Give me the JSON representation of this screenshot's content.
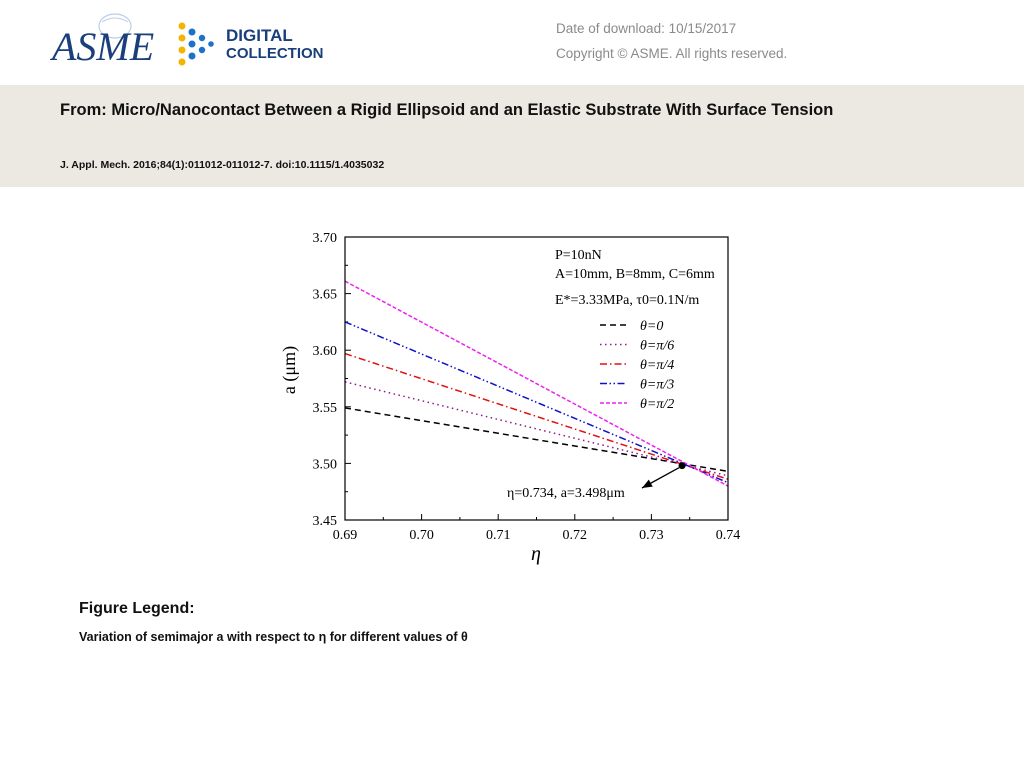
{
  "header": {
    "logo": {
      "primary": "ASME",
      "secondary_line1": "DIGITAL",
      "secondary_line2": "COLLECTION"
    },
    "download_date": "Date of download:  10/15/2017",
    "copyright": "Copyright © ASME. All rights reserved."
  },
  "article": {
    "title": "From: Micro/Nanocontact Between a Rigid Ellipsoid and an Elastic Substrate With Surface Tension",
    "citation": "J. Appl. Mech. 2016;84(1):011012-011012-7. doi:10.1115/1.4035032"
  },
  "figure_legend": {
    "heading": "Figure Legend:",
    "caption": "Variation of semimajor a with respect to η for different values of θ"
  },
  "chart_data": {
    "type": "line",
    "xlabel": "η",
    "ylabel": "a (μm)",
    "xlim": [
      0.69,
      0.74
    ],
    "ylim": [
      3.45,
      3.7
    ],
    "x_ticks": [
      "0.69",
      "0.70",
      "0.71",
      "0.72",
      "0.73",
      "0.74"
    ],
    "y_ticks": [
      "3.45",
      "3.50",
      "3.55",
      "3.60",
      "3.65",
      "3.70"
    ],
    "params": [
      "P=10nN",
      "A=10mm, B=8mm, C=6mm",
      "E*=3.33MPa, τ0=0.1N/m"
    ],
    "series": [
      {
        "name": "θ=0",
        "color": "#000000",
        "dash": "6,4",
        "x": [
          0.69,
          0.74
        ],
        "y": [
          3.549,
          3.493
        ]
      },
      {
        "name": "θ=π/6",
        "color": "#8b1a8b",
        "dash": "1.5,3.5",
        "x": [
          0.69,
          0.74
        ],
        "y": [
          3.572,
          3.489
        ]
      },
      {
        "name": "θ=π/4",
        "color": "#e01010",
        "dash": "7,3,1.5,3",
        "x": [
          0.69,
          0.74
        ],
        "y": [
          3.597,
          3.486
        ]
      },
      {
        "name": "θ=π/3",
        "color": "#1010cc",
        "dash": "7,2.5,1.5,2.5,1.5,2.5",
        "x": [
          0.69,
          0.74
        ],
        "y": [
          3.625,
          3.483
        ]
      },
      {
        "name": "θ=π/2",
        "color": "#ee22ee",
        "dash": "4,2",
        "x": [
          0.69,
          0.74
        ],
        "y": [
          3.661,
          3.48
        ]
      }
    ],
    "annotation": {
      "text": "η=0.734, a=3.498μm",
      "x": 0.734,
      "y": 3.498
    },
    "legend_placement": "top-right inside plot",
    "grid": false
  }
}
